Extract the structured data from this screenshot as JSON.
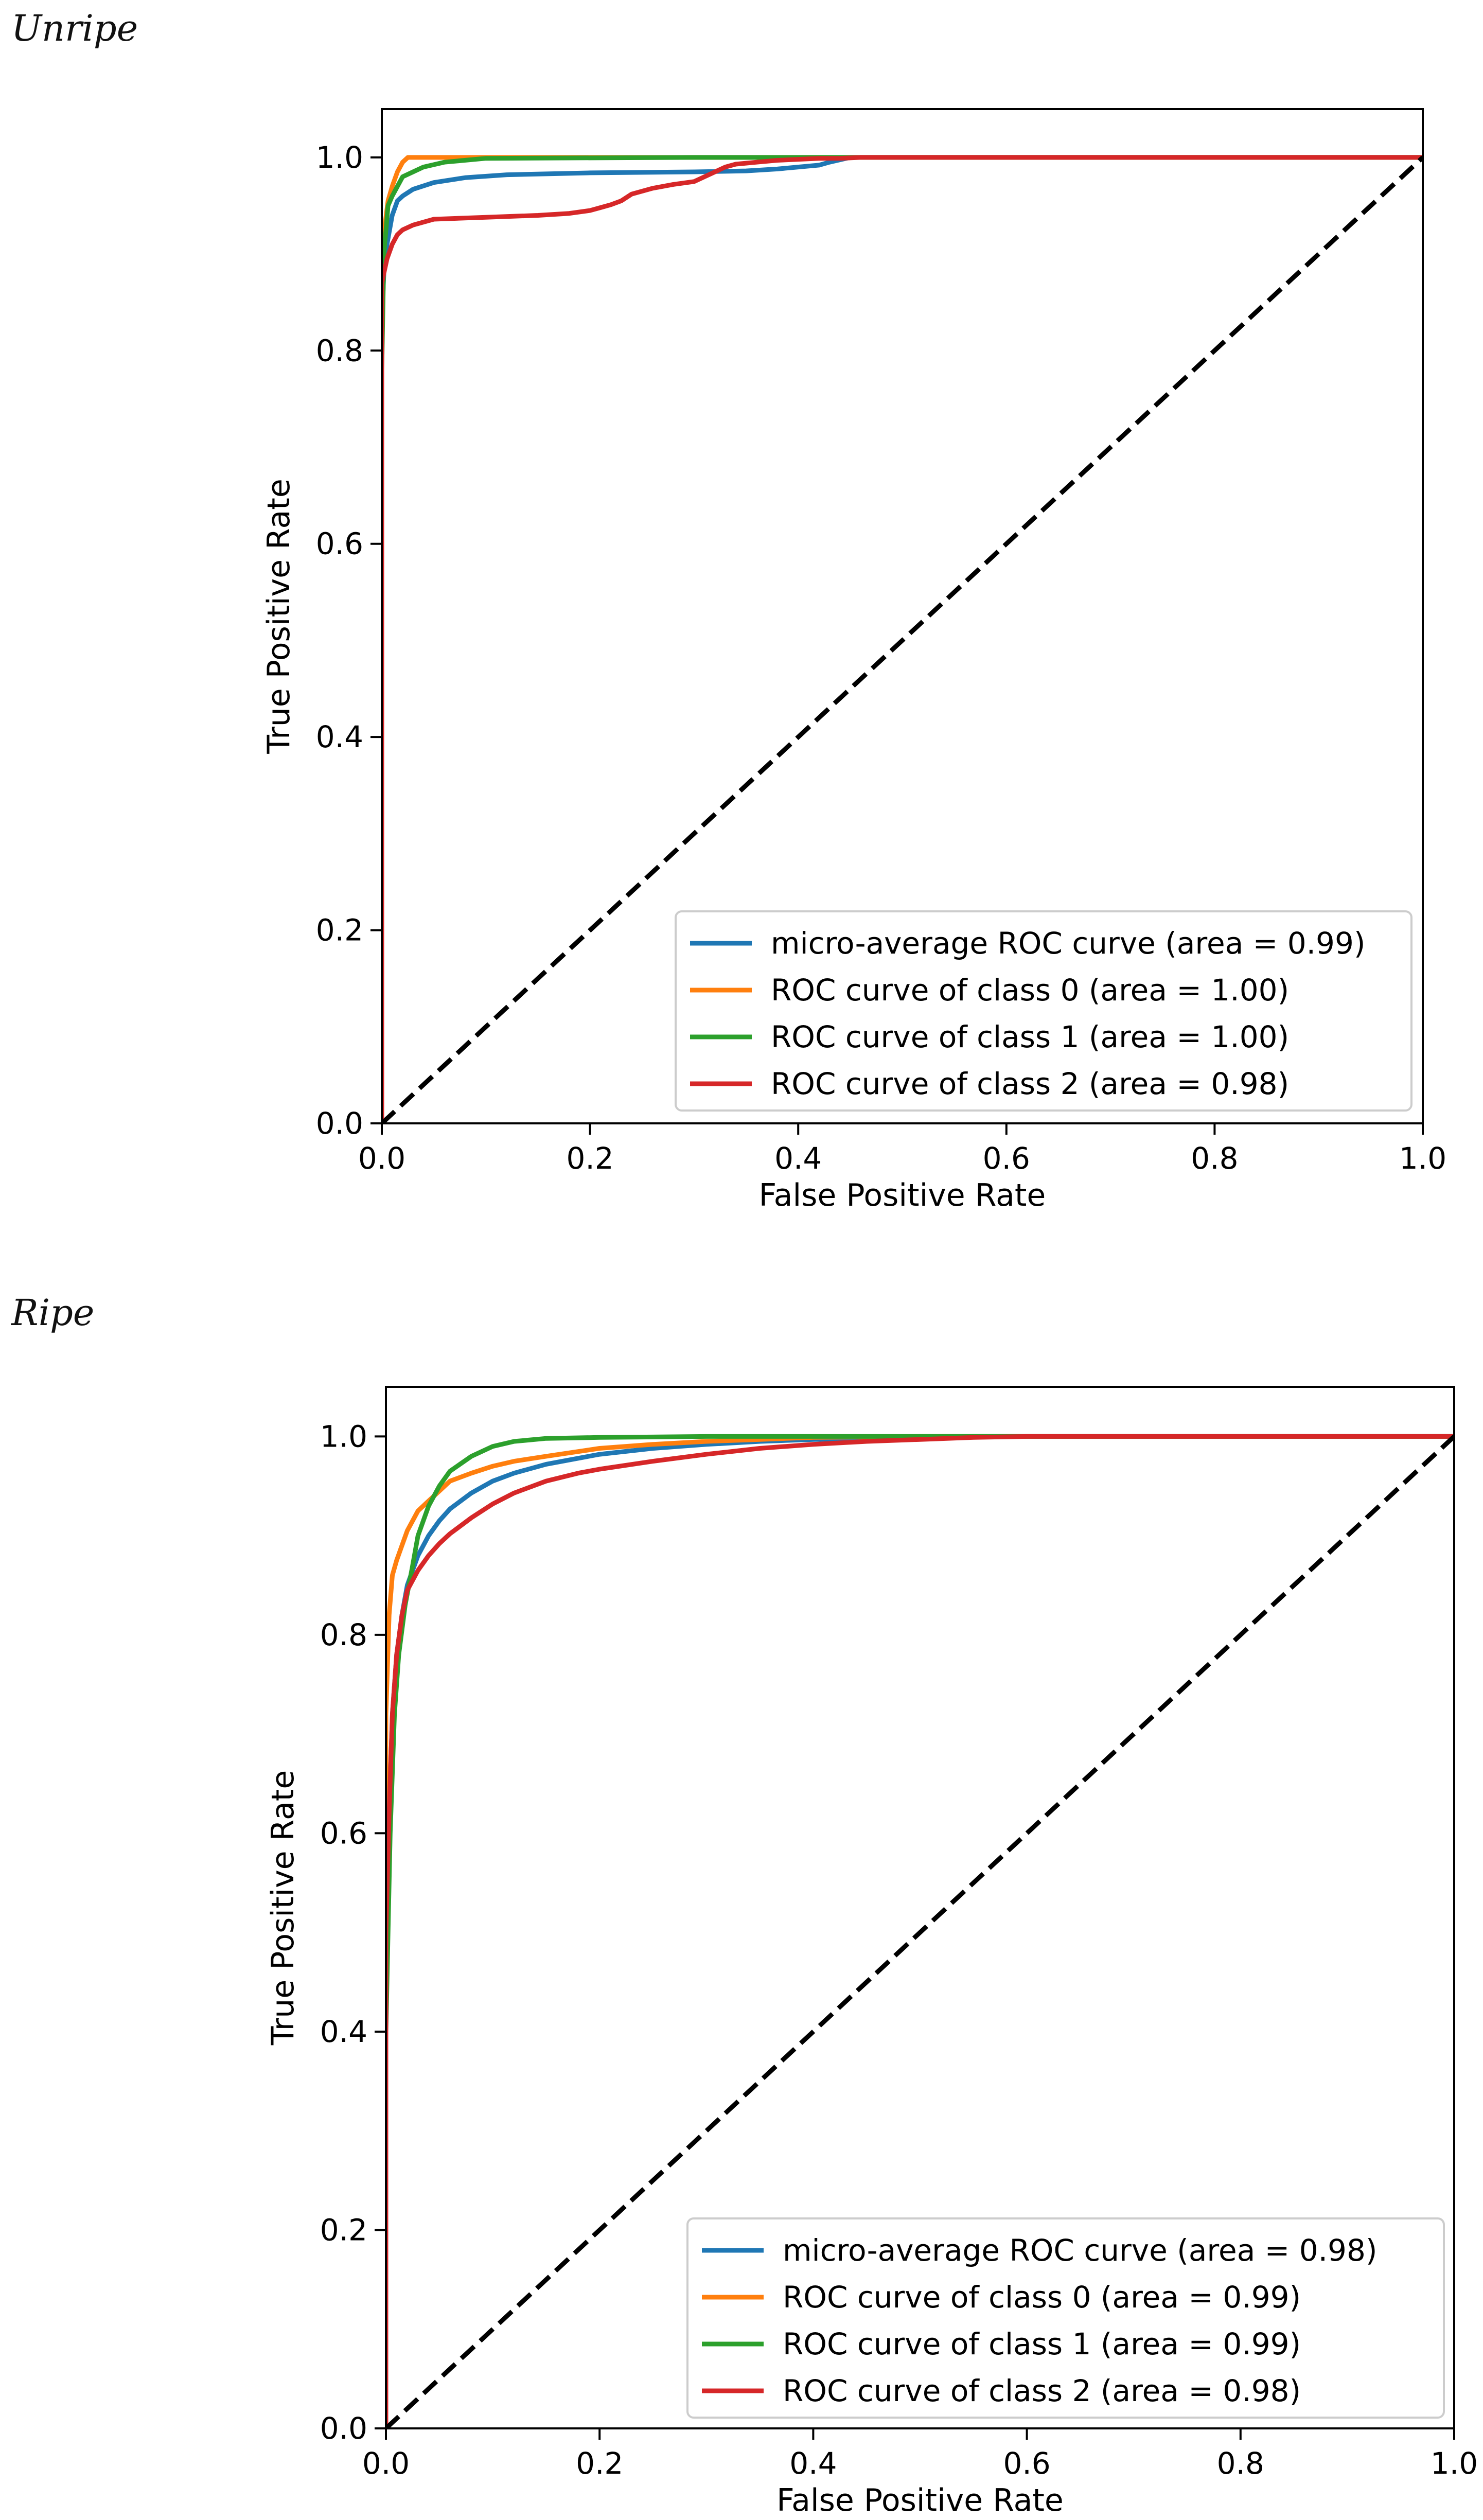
{
  "panels": [
    {
      "heading": "Unripe"
    },
    {
      "heading": "Ripe"
    }
  ],
  "chart_data": [
    {
      "type": "line",
      "panel": "Unripe",
      "title": "",
      "xlabel": "False Positive Rate",
      "ylabel": "True Positive Rate",
      "xlim": [
        0.0,
        1.0
      ],
      "ylim": [
        0.0,
        1.05
      ],
      "xticks": [
        "0.0",
        "0.2",
        "0.4",
        "0.6",
        "0.8",
        "1.0"
      ],
      "yticks": [
        "0.0",
        "0.2",
        "0.4",
        "0.6",
        "0.8",
        "1.0"
      ],
      "grid": false,
      "legend_position": "lower-right",
      "series": [
        {
          "name": "micro-average ROC curve (area = 0.99)",
          "color": "#1f77b4",
          "x": [
            0,
            0,
            0.002,
            0.005,
            0.01,
            0.015,
            0.02,
            0.03,
            0.05,
            0.08,
            0.12,
            0.2,
            0.3,
            0.35,
            0.38,
            0.4,
            0.42,
            0.43,
            0.45,
            1.0
          ],
          "y": [
            0,
            0.83,
            0.88,
            0.91,
            0.94,
            0.955,
            0.96,
            0.967,
            0.974,
            0.979,
            0.982,
            0.984,
            0.985,
            0.986,
            0.988,
            0.99,
            0.992,
            0.995,
            1.0,
            1.0
          ]
        },
        {
          "name": "ROC curve of class 0 (area = 1.00)",
          "color": "#ff7f0e",
          "x": [
            0,
            0,
            0.003,
            0.006,
            0.01,
            0.015,
            0.02,
            0.025,
            0.03,
            0.04,
            1.0
          ],
          "y": [
            0,
            0.88,
            0.93,
            0.955,
            0.97,
            0.985,
            0.995,
            1.0,
            1.0,
            1.0,
            1.0
          ],
          "extra_points": [
            [
              0.33,
              1.0
            ]
          ]
        },
        {
          "name": "ROC curve of class 1 (area = 1.00)",
          "color": "#2ca02c",
          "x": [
            0,
            0,
            0.002,
            0.006,
            0.01,
            0.015,
            0.02,
            0.03,
            0.04,
            0.06,
            0.1,
            0.3,
            1.0
          ],
          "y": [
            0,
            0.78,
            0.9,
            0.95,
            0.96,
            0.97,
            0.98,
            0.985,
            0.99,
            0.995,
            0.999,
            1.0,
            1.0
          ]
        },
        {
          "name": "ROC curve of class 2 (area = 0.98)",
          "color": "#d62728",
          "x": [
            0,
            0,
            0.002,
            0.005,
            0.01,
            0.015,
            0.02,
            0.03,
            0.05,
            0.1,
            0.15,
            0.18,
            0.2,
            0.21,
            0.22,
            0.23,
            0.24,
            0.26,
            0.28,
            0.3,
            0.31,
            0.32,
            0.33,
            0.34,
            0.36,
            0.38,
            0.4,
            0.42,
            0.44,
            0.46,
            1.0
          ],
          "y": [
            0,
            0.87,
            0.88,
            0.895,
            0.91,
            0.92,
            0.925,
            0.93,
            0.936,
            0.938,
            0.94,
            0.942,
            0.945,
            0.948,
            0.951,
            0.955,
            0.962,
            0.968,
            0.972,
            0.975,
            0.98,
            0.985,
            0.99,
            0.993,
            0.995,
            0.997,
            0.998,
            0.999,
            0.999,
            1.0,
            1.0
          ]
        },
        {
          "name": "chance",
          "color": "#000000",
          "dashed": true,
          "in_legend": false,
          "x": [
            0,
            1
          ],
          "y": [
            0,
            1
          ]
        }
      ]
    },
    {
      "type": "line",
      "panel": "Ripe",
      "title": "",
      "xlabel": "False Positive Rate",
      "ylabel": "True Positive Rate",
      "xlim": [
        0.0,
        1.0
      ],
      "ylim": [
        0.0,
        1.05
      ],
      "xticks": [
        "0.0",
        "0.2",
        "0.4",
        "0.6",
        "0.8",
        "1.0"
      ],
      "yticks": [
        "0.0",
        "0.2",
        "0.4",
        "0.6",
        "0.8",
        "1.0"
      ],
      "grid": false,
      "legend_position": "lower-right",
      "series": [
        {
          "name": "micro-average ROC curve (area = 0.98)",
          "color": "#1f77b4",
          "x": [
            0,
            0,
            0.003,
            0.006,
            0.01,
            0.015,
            0.02,
            0.03,
            0.04,
            0.05,
            0.06,
            0.08,
            0.1,
            0.12,
            0.15,
            0.18,
            0.2,
            0.25,
            0.3,
            0.35,
            0.4,
            0.45,
            0.5,
            0.55,
            1.0
          ],
          "y": [
            0,
            0.45,
            0.62,
            0.72,
            0.78,
            0.82,
            0.85,
            0.88,
            0.9,
            0.915,
            0.927,
            0.943,
            0.955,
            0.963,
            0.972,
            0.978,
            0.982,
            0.988,
            0.992,
            0.995,
            0.997,
            0.998,
            0.999,
            1.0,
            1.0
          ]
        },
        {
          "name": "ROC curve of class 0 (area = 0.99)",
          "color": "#ff7f0e",
          "x": [
            0,
            0,
            0.003,
            0.006,
            0.01,
            0.015,
            0.02,
            0.03,
            0.04,
            0.05,
            0.06,
            0.08,
            0.1,
            0.12,
            0.15,
            0.2,
            0.25,
            0.3,
            0.35,
            0.4,
            0.5,
            1.0
          ],
          "y": [
            0,
            0.72,
            0.82,
            0.86,
            0.875,
            0.89,
            0.905,
            0.925,
            0.935,
            0.945,
            0.955,
            0.963,
            0.97,
            0.975,
            0.98,
            0.988,
            0.992,
            0.995,
            0.997,
            0.999,
            1.0,
            1.0
          ]
        },
        {
          "name": "ROC curve of class 1 (area = 0.99)",
          "color": "#2ca02c",
          "x": [
            0,
            0,
            0.004,
            0.008,
            0.012,
            0.018,
            0.025,
            0.03,
            0.04,
            0.05,
            0.06,
            0.08,
            0.1,
            0.12,
            0.15,
            0.2,
            0.3,
            0.4,
            1.0
          ],
          "y": [
            0,
            0.4,
            0.6,
            0.72,
            0.78,
            0.83,
            0.87,
            0.9,
            0.93,
            0.95,
            0.965,
            0.98,
            0.99,
            0.995,
            0.998,
            0.999,
            1.0,
            1.0,
            1.0
          ]
        },
        {
          "name": "ROC curve of class 2 (area = 0.98)",
          "color": "#d62728",
          "x": [
            0,
            0,
            0.003,
            0.006,
            0.01,
            0.015,
            0.02,
            0.03,
            0.04,
            0.05,
            0.06,
            0.08,
            0.1,
            0.12,
            0.15,
            0.18,
            0.2,
            0.25,
            0.3,
            0.35,
            0.4,
            0.45,
            0.5,
            0.55,
            0.6,
            1.0
          ],
          "y": [
            0,
            0.5,
            0.62,
            0.72,
            0.78,
            0.82,
            0.845,
            0.865,
            0.88,
            0.892,
            0.902,
            0.918,
            0.932,
            0.943,
            0.955,
            0.963,
            0.967,
            0.975,
            0.982,
            0.988,
            0.992,
            0.995,
            0.997,
            0.999,
            1.0,
            1.0
          ]
        },
        {
          "name": "chance",
          "color": "#000000",
          "dashed": true,
          "in_legend": false,
          "x": [
            0,
            1
          ],
          "y": [
            0,
            1
          ]
        }
      ]
    }
  ]
}
